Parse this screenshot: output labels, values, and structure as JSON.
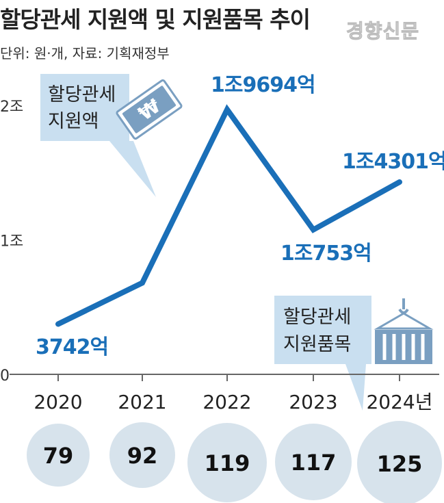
{
  "header": {
    "title": "할당관세 지원액 및 지원품목 추이",
    "watermark": "경향신문",
    "unit_source": "단위: 원·개, 자료: 기획재정부"
  },
  "colors": {
    "line": "#1a6fb8",
    "label": "#1a6fb8",
    "callout_bg": "#c9dff0",
    "bubble_bg": "#d7e3ec",
    "axis": "#666666",
    "icon": "#7a9fc1"
  },
  "callouts": {
    "amount": [
      "할당관세",
      "지원액"
    ],
    "items": [
      "할당관세",
      "지원품목"
    ],
    "amount_icon": "banknote-icon",
    "items_icon": "shipping-container-icon"
  },
  "chart_data": {
    "type": "line",
    "x": [
      "2020",
      "2021",
      "2022",
      "2023",
      "2024년"
    ],
    "series": [
      {
        "values": [
          3742,
          6800,
          19694,
          10753,
          14301
        ],
        "data_labels": [
          "3742억",
          "",
          "1조9694억",
          "1조753억",
          "1조4301억"
        ]
      }
    ],
    "y_unit": "억원",
    "ylim": [
      0,
      20000
    ],
    "y_ticks": [
      {
        "value": 0,
        "label": "0"
      },
      {
        "value": 10000,
        "label": "1조"
      },
      {
        "value": 20000,
        "label": "2조"
      }
    ],
    "bubbles": {
      "values": [
        79,
        92,
        119,
        117,
        125
      ]
    }
  }
}
